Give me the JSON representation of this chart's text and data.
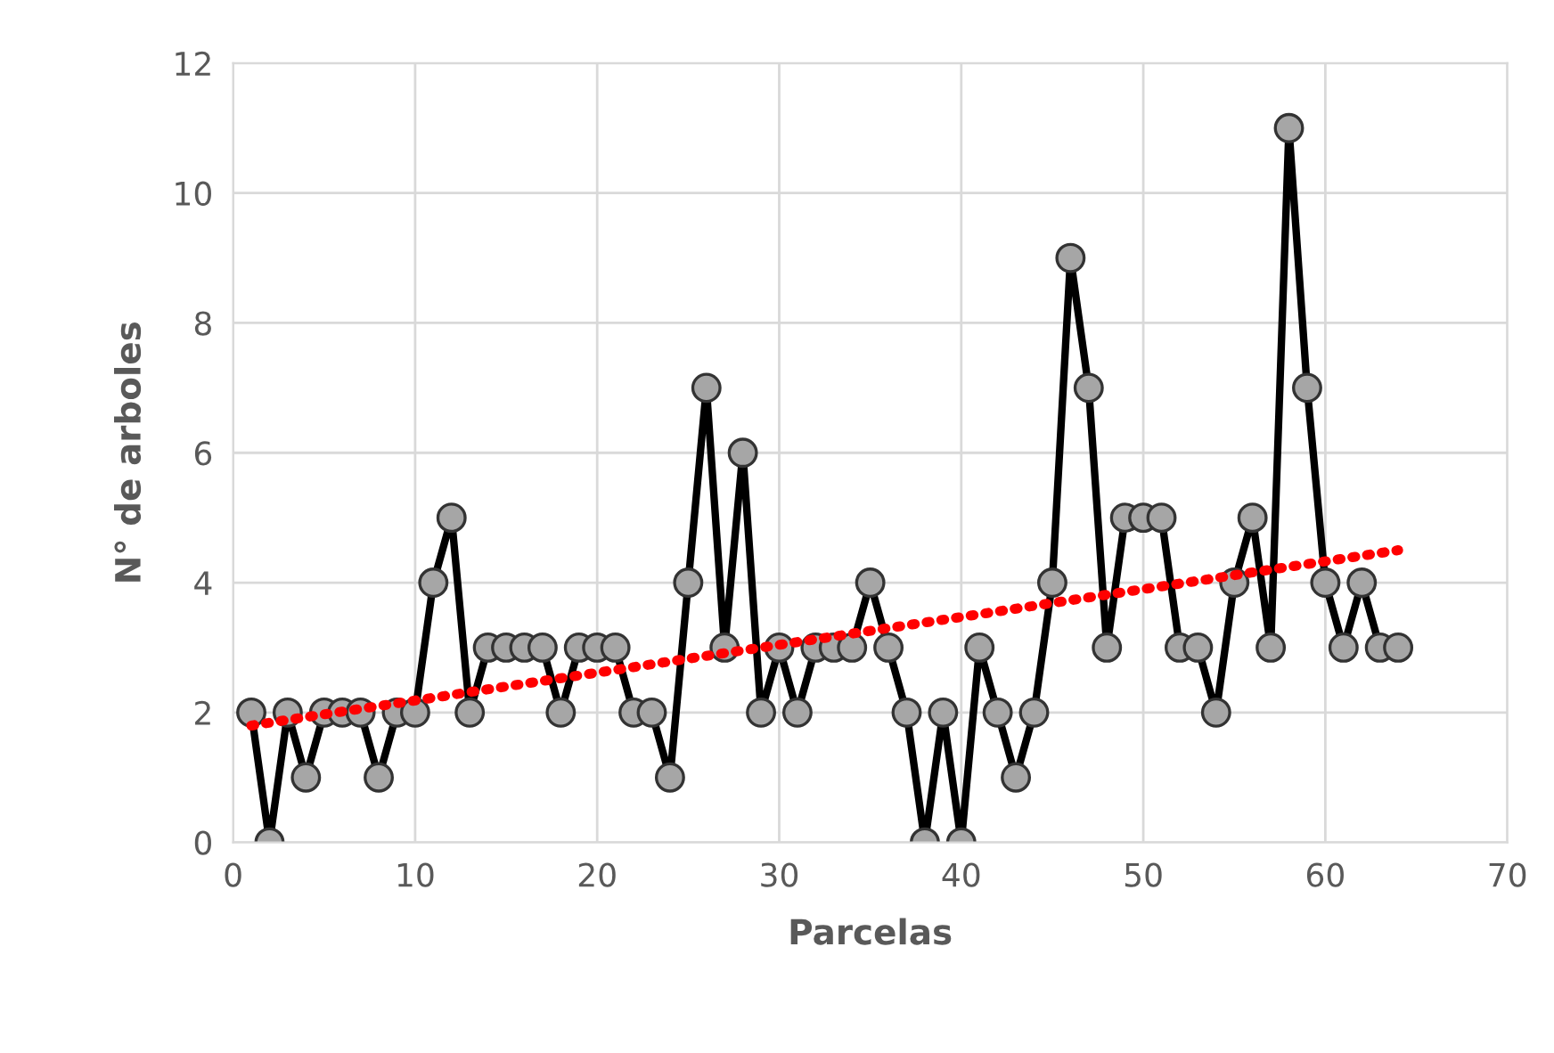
{
  "chart_data": {
    "type": "line",
    "xlabel": "Parcelas",
    "ylabel": "N° de arboles",
    "xlim": [
      0,
      70
    ],
    "xticks": [
      0,
      10,
      20,
      30,
      40,
      50,
      60,
      70
    ],
    "ylim": [
      0,
      12
    ],
    "yticks": [
      0,
      2,
      4,
      6,
      8,
      10,
      12
    ],
    "grid": true,
    "series": [
      {
        "color": "#000000",
        "marker": "circle",
        "line_style": "solid",
        "x": [
          1,
          2,
          3,
          4,
          5,
          6,
          7,
          8,
          9,
          10,
          11,
          12,
          13,
          14,
          15,
          16,
          17,
          18,
          19,
          20,
          21,
          22,
          23,
          24,
          25,
          26,
          27,
          28,
          29,
          30,
          31,
          32,
          33,
          34,
          35,
          36,
          37,
          38,
          39,
          40,
          41,
          42,
          43,
          44,
          45,
          46,
          47,
          48,
          49,
          50,
          51,
          52,
          53,
          54,
          55,
          56,
          57,
          58,
          59,
          60,
          61,
          62,
          63,
          64
        ],
        "values": [
          2,
          0,
          2,
          1,
          2,
          2,
          2,
          1,
          2,
          2,
          4,
          5,
          2,
          3,
          3,
          3,
          3,
          2,
          3,
          3,
          3,
          2,
          2,
          1,
          4,
          7,
          3,
          6,
          2,
          3,
          2,
          3,
          3,
          3,
          4,
          3,
          2,
          0,
          2,
          0,
          3,
          2,
          1,
          2,
          4,
          9,
          7,
          3,
          5,
          5,
          5,
          3,
          3,
          2,
          4,
          5,
          3,
          11,
          7,
          4,
          3,
          4,
          3,
          3
        ]
      },
      {
        "color": "#ff0000",
        "marker": "none",
        "line_style": "dotted",
        "x": [
          1,
          64
        ],
        "values": [
          1.8,
          4.5
        ]
      }
    ]
  }
}
